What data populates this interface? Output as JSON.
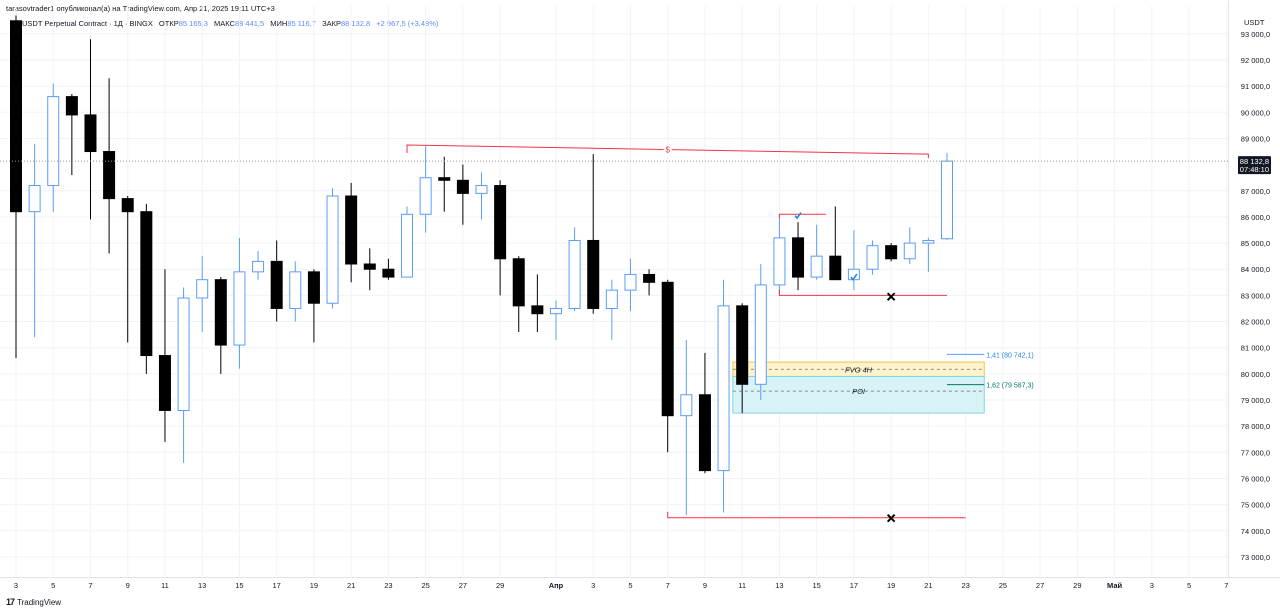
{
  "header": {
    "publish_line": "tarasovtrader1 опубликовал(а) на TradingView.com, Апр 21, 2025 19:11 UTC+3"
  },
  "symbol_bar": {
    "title": "USDT Perpetual Contract · 1Д · BINGX",
    "open_label": "ОТКР",
    "open_value": "85 165,3",
    "high_label": "МАКС",
    "high_value": "88 441,5",
    "low_label": "МИН",
    "low_value": "85 116,7",
    "close_label": "ЗАКР",
    "close_value": "88 132,8",
    "change": "+2 967,5 (+3,48%)"
  },
  "price_axis": {
    "currency": "USDT",
    "last_price_label": "88 132,8",
    "countdown_label": "07:48:10"
  },
  "brand": {
    "name": "TradingView"
  },
  "colors": {
    "bull_body": "#ffffff",
    "bull_border": "#5b9cf6",
    "bear_body": "#000000",
    "wick_bull": "#5b9cf6",
    "wick_bear": "#000000",
    "level_line": "#f23645",
    "fvg_fill": "#fff3cd",
    "fvg_border": "#f0c24b",
    "poi_fill": "#d7f3f7",
    "poi_border": "#7fd6e0",
    "fib_line": "#5b9cf6",
    "fib_text": "#1e88e5",
    "fib2_line": "#00796b"
  },
  "chart_data": {
    "type": "candlestick",
    "timeframe": "1D",
    "ylim": [
      72500,
      93300
    ],
    "y_ticks": [
      {
        "v": 73000,
        "l": "73 000,0"
      },
      {
        "v": 74000,
        "l": "74 000,0"
      },
      {
        "v": 75000,
        "l": "75 000,0"
      },
      {
        "v": 76000,
        "l": "76 000,0"
      },
      {
        "v": 77000,
        "l": "77 000,0"
      },
      {
        "v": 78000,
        "l": "78 000,0"
      },
      {
        "v": 79000,
        "l": "79 000,0"
      },
      {
        "v": 80000,
        "l": "80 000,0"
      },
      {
        "v": 81000,
        "l": "81 000,0"
      },
      {
        "v": 82000,
        "l": "82 000,0"
      },
      {
        "v": 83000,
        "l": "83 000,0"
      },
      {
        "v": 84000,
        "l": "84 000,0"
      },
      {
        "v": 85000,
        "l": "85 000,0"
      },
      {
        "v": 86000,
        "l": "86 000,0"
      },
      {
        "v": 87000,
        "l": "87 000,0"
      },
      {
        "v": 89000,
        "l": "89 000,0"
      },
      {
        "v": 90000,
        "l": "90 000,0"
      },
      {
        "v": 91000,
        "l": "91 000,0"
      },
      {
        "v": 92000,
        "l": "92 000,0"
      },
      {
        "v": 93000,
        "l": "93 000,0"
      }
    ],
    "x_ticks": [
      {
        "i": 0,
        "l": "3"
      },
      {
        "i": 2,
        "l": "5"
      },
      {
        "i": 4,
        "l": "7"
      },
      {
        "i": 6,
        "l": "9"
      },
      {
        "i": 8,
        "l": "11"
      },
      {
        "i": 10,
        "l": "13"
      },
      {
        "i": 12,
        "l": "15"
      },
      {
        "i": 14,
        "l": "17"
      },
      {
        "i": 16,
        "l": "19"
      },
      {
        "i": 18,
        "l": "21"
      },
      {
        "i": 20,
        "l": "23"
      },
      {
        "i": 22,
        "l": "25"
      },
      {
        "i": 24,
        "l": "27"
      },
      {
        "i": 26,
        "l": "29"
      },
      {
        "i": 29,
        "l": "Апр"
      },
      {
        "i": 31,
        "l": "3"
      },
      {
        "i": 33,
        "l": "5"
      },
      {
        "i": 35,
        "l": "7"
      },
      {
        "i": 37,
        "l": "9"
      },
      {
        "i": 39,
        "l": "11"
      },
      {
        "i": 41,
        "l": "13"
      },
      {
        "i": 43,
        "l": "15"
      },
      {
        "i": 45,
        "l": "17"
      },
      {
        "i": 47,
        "l": "19"
      },
      {
        "i": 49,
        "l": "21"
      },
      {
        "i": 51,
        "l": "23"
      },
      {
        "i": 53,
        "l": "25"
      },
      {
        "i": 55,
        "l": "27"
      },
      {
        "i": 57,
        "l": "29"
      },
      {
        "i": 59,
        "l": "Май"
      },
      {
        "i": 61,
        "l": "3"
      },
      {
        "i": 63,
        "l": "5"
      },
      {
        "i": 65,
        "l": "7"
      }
    ],
    "candles": [
      {
        "o": 93500,
        "h": 93700,
        "l": 80600,
        "c": 86200
      },
      {
        "o": 86200,
        "h": 88800,
        "l": 81400,
        "c": 87200
      },
      {
        "o": 87200,
        "h": 91100,
        "l": 86200,
        "c": 90600
      },
      {
        "o": 90600,
        "h": 90700,
        "l": 87600,
        "c": 89900
      },
      {
        "o": 89900,
        "h": 92800,
        "l": 85900,
        "c": 88500
      },
      {
        "o": 88500,
        "h": 91300,
        "l": 84600,
        "c": 86700
      },
      {
        "o": 86700,
        "h": 86800,
        "l": 81200,
        "c": 86200
      },
      {
        "o": 86200,
        "h": 86500,
        "l": 80000,
        "c": 80700
      },
      {
        "o": 80700,
        "h": 84000,
        "l": 77400,
        "c": 78600
      },
      {
        "o": 78600,
        "h": 83300,
        "l": 76600,
        "c": 82900
      },
      {
        "o": 82900,
        "h": 84500,
        "l": 81600,
        "c": 83600
      },
      {
        "o": 83600,
        "h": 83700,
        "l": 80000,
        "c": 81100
      },
      {
        "o": 81100,
        "h": 85200,
        "l": 80200,
        "c": 83900
      },
      {
        "o": 83900,
        "h": 84700,
        "l": 83600,
        "c": 84300
      },
      {
        "o": 84300,
        "h": 85100,
        "l": 82000,
        "c": 82500
      },
      {
        "o": 82500,
        "h": 84300,
        "l": 82000,
        "c": 83900
      },
      {
        "o": 83900,
        "h": 84000,
        "l": 81200,
        "c": 82700
      },
      {
        "o": 82700,
        "h": 87100,
        "l": 82500,
        "c": 86800
      },
      {
        "o": 86800,
        "h": 87300,
        "l": 83500,
        "c": 84200
      },
      {
        "o": 84200,
        "h": 84800,
        "l": 83200,
        "c": 84000
      },
      {
        "o": 84000,
        "h": 84400,
        "l": 83600,
        "c": 83700
      },
      {
        "o": 83700,
        "h": 86400,
        "l": 83700,
        "c": 86100
      },
      {
        "o": 86100,
        "h": 88700,
        "l": 85400,
        "c": 87500
      },
      {
        "o": 87500,
        "h": 88300,
        "l": 86200,
        "c": 87400
      },
      {
        "o": 87400,
        "h": 88000,
        "l": 85700,
        "c": 86900
      },
      {
        "o": 86900,
        "h": 87700,
        "l": 85900,
        "c": 87200
      },
      {
        "o": 87200,
        "h": 87400,
        "l": 83000,
        "c": 84400
      },
      {
        "o": 84400,
        "h": 84500,
        "l": 81600,
        "c": 82600
      },
      {
        "o": 82600,
        "h": 83800,
        "l": 81600,
        "c": 82300
      },
      {
        "o": 82300,
        "h": 82800,
        "l": 81300,
        "c": 82500
      },
      {
        "o": 82500,
        "h": 85600,
        "l": 82400,
        "c": 85100
      },
      {
        "o": 85100,
        "h": 88400,
        "l": 82300,
        "c": 82500
      },
      {
        "o": 82500,
        "h": 83600,
        "l": 81300,
        "c": 83200
      },
      {
        "o": 83200,
        "h": 84400,
        "l": 82400,
        "c": 83800
      },
      {
        "o": 83800,
        "h": 84000,
        "l": 83000,
        "c": 83500
      },
      {
        "o": 83500,
        "h": 83600,
        "l": 77000,
        "c": 78400
      },
      {
        "o": 78400,
        "h": 81300,
        "l": 74600,
        "c": 79200
      },
      {
        "o": 79200,
        "h": 80800,
        "l": 76200,
        "c": 76300
      },
      {
        "o": 76300,
        "h": 83600,
        "l": 74700,
        "c": 82600
      },
      {
        "o": 82600,
        "h": 82700,
        "l": 78500,
        "c": 79600
      },
      {
        "o": 79600,
        "h": 84200,
        "l": 79000,
        "c": 83400
      },
      {
        "o": 83400,
        "h": 86100,
        "l": 83000,
        "c": 85200
      },
      {
        "o": 85200,
        "h": 85800,
        "l": 83200,
        "c": 83700
      },
      {
        "o": 83700,
        "h": 85700,
        "l": 83600,
        "c": 84500
      },
      {
        "o": 84500,
        "h": 86400,
        "l": 83600,
        "c": 83600
      },
      {
        "o": 83600,
        "h": 85500,
        "l": 83200,
        "c": 84000
      },
      {
        "o": 84000,
        "h": 85100,
        "l": 83800,
        "c": 84900
      },
      {
        "o": 84900,
        "h": 85000,
        "l": 84300,
        "c": 84400
      },
      {
        "o": 84400,
        "h": 85600,
        "l": 84200,
        "c": 85000
      },
      {
        "o": 85000,
        "h": 85200,
        "l": 83900,
        "c": 85100
      },
      {
        "o": 85165.3,
        "h": 88441.5,
        "l": 85116.7,
        "c": 88132.8
      }
    ],
    "last_price": 88132.8,
    "annotations": {
      "liquidity_line": {
        "i1": 21.0,
        "v1": 88750,
        "i2": 49.0,
        "v2": 88400,
        "label": "$"
      },
      "high_bracket": {
        "i1": 41.0,
        "i2": 43.5,
        "v": 86100
      },
      "support_line": {
        "i1": 41.0,
        "i2": 50.0,
        "v": 83000
      },
      "low_line": {
        "i1": 35.0,
        "i2": 51.0,
        "v": 74500
      },
      "x_marks": [
        {
          "i": 47.0,
          "v": 82950
        },
        {
          "i": 47.0,
          "v": 74480
        }
      ],
      "check_marks": [
        {
          "i": 42.0,
          "v": 86050
        },
        {
          "i": 45.0,
          "v": 83700
        }
      ],
      "fvg_zone": {
        "i1": 38.5,
        "i2": 52.0,
        "v_top": 80450,
        "v_bot": 79900,
        "label": "FVG 4H"
      },
      "poi_zone": {
        "i1": 38.5,
        "i2": 52.0,
        "v_top": 79900,
        "v_bot": 78500,
        "label": "POI"
      },
      "fib_levels": [
        {
          "i1": 50.0,
          "i2": 52.0,
          "v": 80742.1,
          "label": "1,41 (80 742,1)"
        },
        {
          "i1": 50.0,
          "i2": 52.0,
          "v": 79587.3,
          "label": "1,62 (79 587,3)"
        }
      ]
    }
  }
}
